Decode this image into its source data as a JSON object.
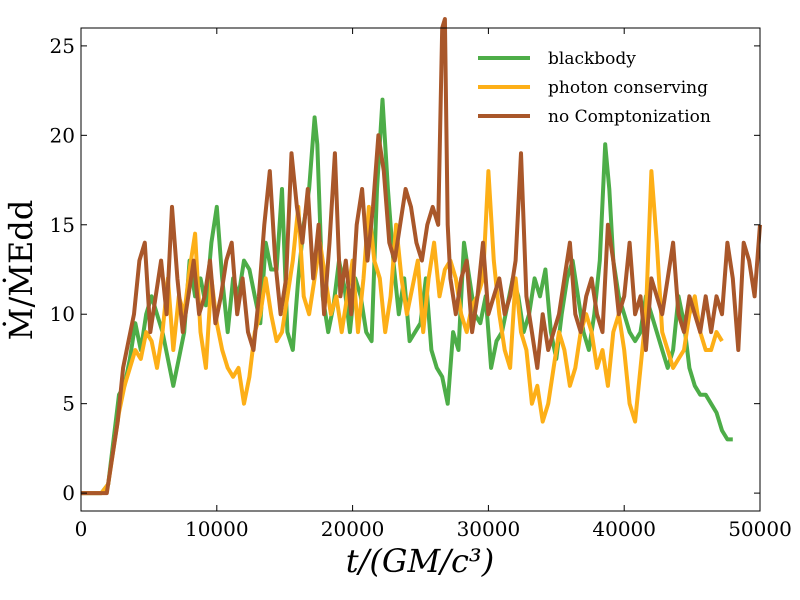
{
  "chart_data": {
    "type": "line",
    "xlabel": "t/(GM/c³)",
    "ylabel": "Ṁ/ṀEdd",
    "xlim": [
      0,
      50000
    ],
    "ylim": [
      -1,
      26
    ],
    "xticks": [
      0,
      10000,
      20000,
      30000,
      40000,
      50000
    ],
    "yticks": [
      0,
      5,
      10,
      15,
      20,
      25
    ],
    "grid": false,
    "legend_position": "top-right",
    "series": [
      {
        "name": "blackbody",
        "color": "#4dad48",
        "x": [
          0,
          1500,
          2000,
          2400,
          2800,
          3200,
          3600,
          4000,
          4400,
          4800,
          5200,
          5600,
          6000,
          6400,
          6800,
          7200,
          7600,
          8000,
          8400,
          8800,
          9200,
          9600,
          10000,
          10400,
          10800,
          11200,
          11600,
          12000,
          12400,
          12800,
          13200,
          13600,
          14000,
          14400,
          14800,
          15200,
          15600,
          16000,
          16400,
          16800,
          17200,
          17400,
          17800,
          18200,
          18600,
          19000,
          19400,
          19800,
          20200,
          20600,
          21000,
          21400,
          21800,
          22200,
          22600,
          23000,
          23400,
          23800,
          24200,
          24600,
          25000,
          25400,
          25800,
          26200,
          26600,
          27000,
          27400,
          27800,
          28200,
          28600,
          29000,
          29400,
          29800,
          30200,
          30600,
          31000,
          31400,
          31800,
          32200,
          32600,
          33000,
          33400,
          33800,
          34200,
          34600,
          35000,
          35400,
          35800,
          36200,
          36600,
          37000,
          37400,
          37800,
          38200,
          38600,
          38900,
          39200,
          39600,
          40000,
          40400,
          40800,
          41200,
          41600,
          42000,
          42400,
          42800,
          43200,
          43600,
          44000,
          44400,
          44800,
          45200,
          45600,
          46000,
          46400,
          46800,
          47200,
          47600,
          48000
        ],
        "values": [
          0,
          0,
          0.5,
          3,
          5.5,
          6,
          7.5,
          9.5,
          8,
          10,
          11,
          10,
          9,
          7.5,
          6,
          7.5,
          9,
          13,
          11,
          12,
          10.5,
          14,
          16,
          12,
          9,
          12,
          11,
          13,
          12.5,
          11,
          9.5,
          14,
          12.5,
          12.5,
          17,
          9,
          8,
          12,
          15,
          17,
          21,
          19.5,
          11,
          9,
          10.5,
          13,
          11.5,
          9,
          12,
          11,
          9,
          8.5,
          17,
          22,
          17,
          13,
          10,
          12,
          8.5,
          9,
          9.5,
          12,
          8,
          7,
          6.5,
          5,
          9,
          8,
          14,
          12,
          10,
          9.5,
          11,
          7,
          8.5,
          9,
          10.5,
          12,
          11,
          9,
          10,
          12,
          11,
          12.5,
          9,
          7.5,
          10,
          12,
          13,
          11,
          9,
          8,
          10,
          13,
          19.5,
          17,
          13,
          11,
          10,
          9,
          8.5,
          9,
          11,
          10,
          9,
          8,
          7,
          8,
          11,
          9.5,
          7,
          6,
          5.5,
          5.5,
          5,
          4.5,
          3.5,
          3,
          3
        ]
      },
      {
        "name": "photon conserving",
        "color": "#fdaf17",
        "x": [
          0,
          1500,
          2000,
          2400,
          2800,
          3200,
          3600,
          4000,
          4400,
          4800,
          5200,
          5600,
          6000,
          6400,
          6800,
          7200,
          7600,
          8000,
          8400,
          8800,
          9200,
          9600,
          10000,
          10400,
          10800,
          11200,
          11600,
          12000,
          12400,
          12800,
          13200,
          13600,
          14000,
          14400,
          14800,
          15200,
          15600,
          16000,
          16400,
          16800,
          17200,
          17600,
          18000,
          18400,
          18800,
          19200,
          19600,
          20000,
          20400,
          20800,
          21200,
          21600,
          22000,
          22400,
          22800,
          23200,
          23600,
          24000,
          24400,
          24800,
          25200,
          25600,
          26000,
          26400,
          26800,
          27200,
          27600,
          28000,
          28400,
          28800,
          29200,
          29600,
          30000,
          30400,
          30800,
          31200,
          31600,
          32000,
          32400,
          32800,
          33200,
          33600,
          34000,
          34400,
          34800,
          35200,
          35600,
          36000,
          36400,
          36800,
          37200,
          37600,
          38000,
          38400,
          38800,
          39200,
          39600,
          40000,
          40400,
          40800,
          41200,
          41600,
          42000,
          42400,
          42800,
          43200,
          43600,
          44000,
          44400,
          44800,
          45200,
          45600,
          46000,
          46400,
          46800,
          47200
        ],
        "values": [
          0,
          0,
          0.5,
          2.5,
          4.5,
          6,
          7,
          8,
          7.5,
          9,
          8.5,
          7,
          9,
          12,
          8,
          11,
          10,
          12.5,
          14.5,
          9,
          7,
          12,
          9.5,
          8,
          7,
          6.5,
          7,
          5,
          6.5,
          9,
          10,
          12,
          10,
          8.5,
          9,
          11,
          13,
          16,
          11,
          10,
          12,
          14,
          12,
          10,
          11,
          9,
          11,
          13,
          9,
          12,
          16,
          13,
          12,
          9,
          11,
          15,
          12,
          10,
          11.5,
          13,
          9,
          12,
          14,
          11,
          12.5,
          13,
          12,
          10,
          9,
          10.5,
          11,
          12,
          18,
          13,
          10,
          8,
          7,
          12,
          9,
          8,
          5,
          6,
          4,
          5,
          7,
          9,
          8,
          6,
          7,
          9,
          10,
          9,
          7,
          8,
          6,
          9,
          10,
          8,
          5,
          4,
          7,
          10,
          18,
          14,
          9,
          8,
          7,
          7.5,
          8,
          10,
          11,
          9,
          8,
          8,
          9,
          8.5
        ]
      },
      {
        "name": "no Comptonization",
        "color": "#a9572a",
        "x": [
          0,
          1500,
          1900,
          2300,
          2700,
          3100,
          3500,
          3900,
          4300,
          4700,
          5100,
          5500,
          5900,
          6300,
          6700,
          7100,
          7500,
          7900,
          8300,
          8700,
          9100,
          9500,
          9900,
          10300,
          10700,
          11100,
          11500,
          11900,
          12300,
          12700,
          13100,
          13500,
          13900,
          14300,
          14700,
          15100,
          15500,
          15900,
          16300,
          16700,
          17100,
          17500,
          17900,
          18300,
          18700,
          19100,
          19500,
          19900,
          20300,
          20700,
          21100,
          21500,
          21900,
          22300,
          22700,
          23100,
          23500,
          23900,
          24300,
          24700,
          25100,
          25500,
          25900,
          26300,
          26600,
          26800,
          27000,
          27200,
          27600,
          28000,
          28400,
          28800,
          29200,
          29600,
          30000,
          30400,
          30800,
          31200,
          31600,
          32000,
          32400,
          32800,
          33200,
          33600,
          34000,
          34400,
          34800,
          35200,
          35600,
          36000,
          36400,
          36800,
          37200,
          37600,
          38000,
          38400,
          38800,
          39200,
          39600,
          40000,
          40400,
          40800,
          41200,
          41600,
          42000,
          42400,
          42800,
          43200,
          43600,
          44000,
          44400,
          44800,
          45200,
          45600,
          46000,
          46400,
          46800,
          47200,
          47600,
          48000,
          48400,
          48800,
          49200,
          49600,
          50000
        ],
        "values": [
          0,
          0,
          0,
          2,
          4,
          7,
          8.5,
          10,
          13,
          14,
          9,
          11,
          13,
          10,
          16,
          12,
          9,
          11,
          13,
          10,
          11,
          13,
          9.5,
          11,
          13,
          14,
          10,
          12,
          9,
          8,
          11,
          15,
          18,
          13,
          10,
          12,
          19,
          16,
          14,
          17,
          12,
          15,
          10,
          14,
          19,
          11,
          13,
          10,
          15,
          17,
          13,
          16,
          20,
          18,
          14,
          13,
          15,
          17,
          16,
          14,
          13,
          15,
          16,
          15,
          26,
          27,
          15,
          12,
          10,
          12,
          13,
          9,
          11,
          14,
          10,
          11,
          12,
          10,
          11,
          13,
          19,
          11,
          9,
          7,
          10,
          8,
          9,
          10,
          12,
          14,
          10,
          9,
          11,
          12,
          10,
          9,
          15,
          13,
          10,
          11,
          14,
          10,
          11,
          8,
          12,
          11,
          10,
          12,
          14,
          10,
          9,
          11,
          10,
          9,
          11,
          9,
          11,
          10,
          14,
          12,
          8,
          14,
          13,
          11,
          15
        ]
      }
    ]
  }
}
